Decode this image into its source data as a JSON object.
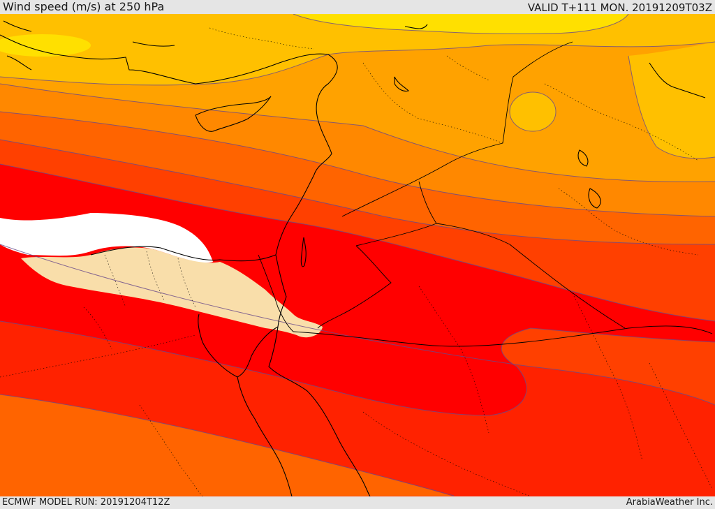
{
  "header": {
    "title": "Wind speed (m/s) at 250 hPa",
    "valid_time": "VALID T+111 MON. 20191209T03Z"
  },
  "footer": {
    "model_run": "ECMWF MODEL RUN: 20191204T12Z",
    "credit": "ArabiaWeather Inc."
  },
  "map": {
    "palette": {
      "background": "#e5e5e5",
      "yellow": "#ffe000",
      "gold": "#ffc000",
      "light_orange": "#ffa200",
      "orange": "#ff8800",
      "dark_orange": "#ff6400",
      "orange_red": "#ff4000",
      "red_orange": "#ff2200",
      "red": "#ff0000",
      "wheat": "#f9deaa",
      "white": "#ffffff",
      "coastline": "#000000",
      "contour": "#6a4a8a"
    }
  }
}
